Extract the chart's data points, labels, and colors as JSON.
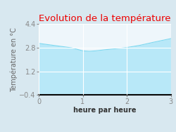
{
  "title": "Evolution de la température",
  "xlabel": "heure par heure",
  "ylabel": "Température en °C",
  "x": [
    0,
    0.25,
    0.5,
    0.75,
    1.0,
    1.15,
    1.3,
    1.5,
    1.75,
    2.0,
    2.3,
    2.6,
    3.0
  ],
  "y": [
    3.08,
    2.98,
    2.88,
    2.78,
    2.58,
    2.55,
    2.58,
    2.65,
    2.72,
    2.8,
    2.95,
    3.15,
    3.4
  ],
  "xlim": [
    0,
    3
  ],
  "ylim": [
    -0.4,
    4.4
  ],
  "xticks": [
    0,
    1,
    2,
    3
  ],
  "yticks": [
    -0.4,
    1.2,
    2.8,
    4.4
  ],
  "line_color": "#7dd8f0",
  "fill_color": "#b8e8f8",
  "title_color": "#ee0000",
  "bg_color": "#d8e8f0",
  "plot_bg_color": "#eef6fb",
  "grid_color": "#ffffff",
  "title_fontsize": 9.5,
  "label_fontsize": 7,
  "tick_fontsize": 7,
  "tick_color": "#888888"
}
